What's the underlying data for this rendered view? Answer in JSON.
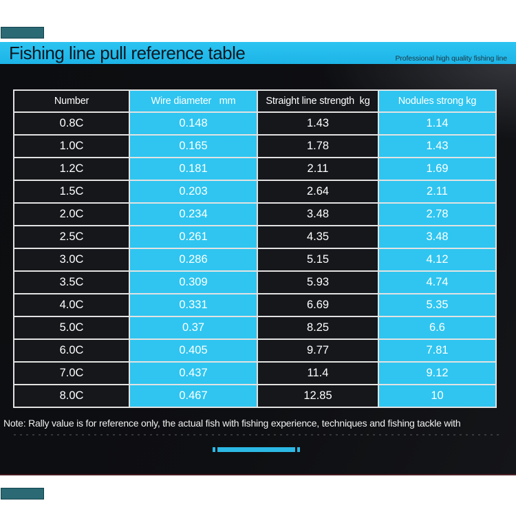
{
  "banner": {
    "title": "Fishing line pull reference table",
    "subtitle": "Professional high quality fishing line"
  },
  "table": {
    "headers": [
      "Number",
      "Wire diameter   mm",
      "Straight line strength  kg",
      "Nodules strong kg"
    ],
    "rows": [
      [
        "0.8C",
        "0.148",
        "1.43",
        "1.14"
      ],
      [
        "1.0C",
        "0.165",
        "1.78",
        "1.43"
      ],
      [
        "1.2C",
        "0.181",
        "2.11",
        "1.69"
      ],
      [
        "1.5C",
        "0.203",
        "2.64",
        "2.11"
      ],
      [
        "2.0C",
        "0.234",
        "3.48",
        "2.78"
      ],
      [
        "2.5C",
        "0.261",
        "4.35",
        "3.48"
      ],
      [
        "3.0C",
        "0.286",
        "5.15",
        "4.12"
      ],
      [
        "3.5C",
        "0.309",
        "5.93",
        "4.74"
      ],
      [
        "4.0C",
        "0.331",
        "6.69",
        "5.35"
      ],
      [
        "5.0C",
        "0.37",
        "8.25",
        "6.6"
      ],
      [
        "6.0C",
        "0.405",
        "9.77",
        "7.81"
      ],
      [
        "7.0C",
        "0.437",
        "11.4",
        "9.12"
      ],
      [
        "8.0C",
        "0.467",
        "12.85",
        "10"
      ]
    ]
  },
  "note": "Note: Rally value is for reference only, the actual fish with fishing experience, techniques and fishing tackle with",
  "colors": {
    "banner_cyan": "#23bbec",
    "cell_cyan": "#2fc5f0",
    "cell_dark": "#16171b",
    "grid_line": "#e3e3e3",
    "photo_background": "#0d0e11",
    "accent_bar": "#2cb8e4",
    "corner_mark": "#2b6a74",
    "banner_text": "#0a1822",
    "cell_text": "#ffffff"
  },
  "chart_data": {
    "type": "table",
    "title": "Fishing line pull reference table",
    "columns": [
      "Number",
      "Wire diameter (mm)",
      "Straight line strength (kg)",
      "Nodules strong (kg)"
    ],
    "rows": [
      [
        "0.8C",
        0.148,
        1.43,
        1.14
      ],
      [
        "1.0C",
        0.165,
        1.78,
        1.43
      ],
      [
        "1.2C",
        0.181,
        2.11,
        1.69
      ],
      [
        "1.5C",
        0.203,
        2.64,
        2.11
      ],
      [
        "2.0C",
        0.234,
        3.48,
        2.78
      ],
      [
        "2.5C",
        0.261,
        4.35,
        3.48
      ],
      [
        "3.0C",
        0.286,
        5.15,
        4.12
      ],
      [
        "3.5C",
        0.309,
        5.93,
        4.74
      ],
      [
        "4.0C",
        0.331,
        6.69,
        5.35
      ],
      [
        "5.0C",
        0.37,
        8.25,
        6.6
      ],
      [
        "6.0C",
        0.405,
        9.77,
        7.81
      ],
      [
        "7.0C",
        0.437,
        11.4,
        9.12
      ],
      [
        "8.0C",
        0.467,
        12.85,
        10
      ]
    ]
  }
}
